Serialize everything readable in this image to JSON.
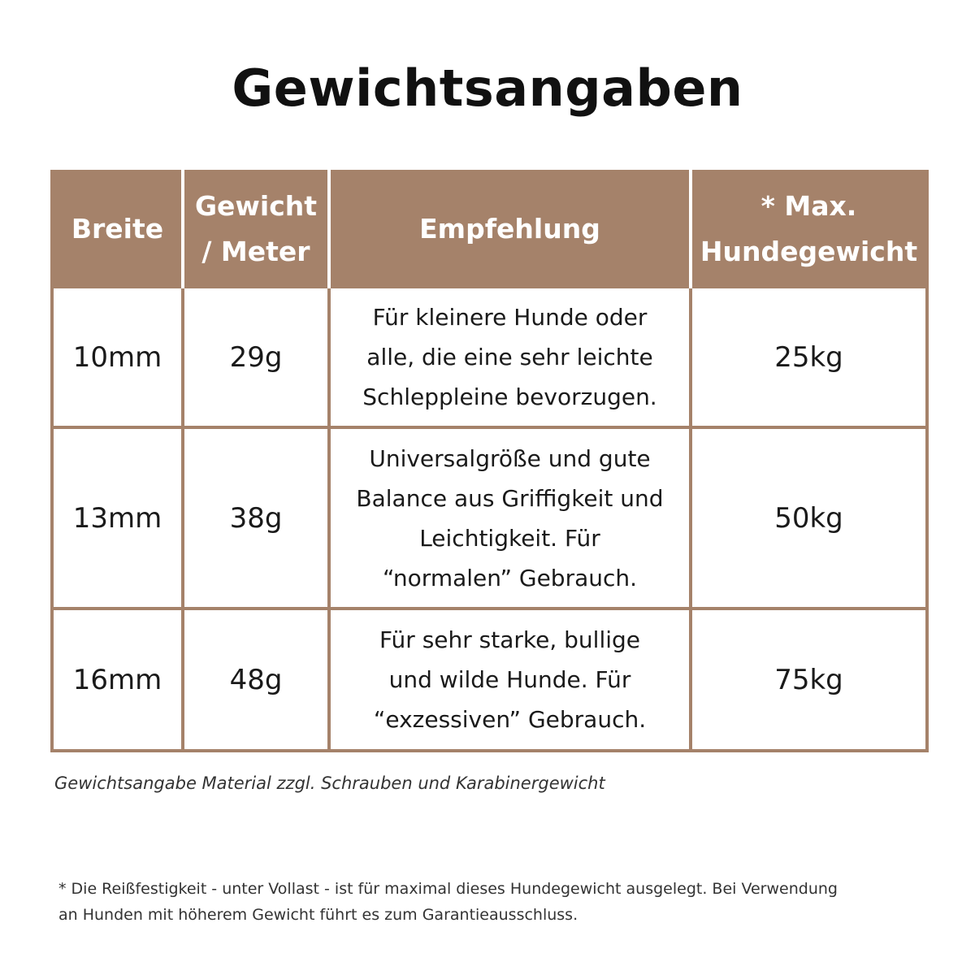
{
  "title": "Gewichtsangaben",
  "colors": {
    "header_bg": "#a5826a",
    "border": "#a5826a",
    "header_text": "#ffffff"
  },
  "table": {
    "headers": [
      [
        "Breite"
      ],
      [
        "Gewicht",
        "/ Meter"
      ],
      [
        "Empfehlung"
      ],
      [
        "* Max.",
        "Hundegewicht"
      ]
    ],
    "rows": [
      {
        "breite": "10mm",
        "gewicht": "29g",
        "empfehlung": [
          "Für kleinere Hunde oder",
          "alle, die eine sehr leichte",
          "Schleppleine bevorzugen."
        ],
        "max": "25kg"
      },
      {
        "breite": "13mm",
        "gewicht": "38g",
        "empfehlung": [
          "Universalgröße und gute",
          "Balance aus Griffigkeit und",
          "Leichtigkeit. Für",
          "“normalen” Gebrauch."
        ],
        "max": "50kg"
      },
      {
        "breite": "16mm",
        "gewicht": "48g",
        "empfehlung": [
          "Für sehr starke, bullige",
          "und wilde Hunde. Für",
          "“exzessiven” Gebrauch."
        ],
        "max": "75kg"
      }
    ]
  },
  "note": "Gewichtsangabe Material zzgl. Schrauben und Karabinergewicht",
  "disclaimer": [
    "* Die Reißfestigkeit - unter Vollast - ist für maximal dieses Hundegewicht ausgelegt. Bei Verwendung",
    "an Hunden mit höherem Gewicht führt es zum Garantieausschluss."
  ]
}
